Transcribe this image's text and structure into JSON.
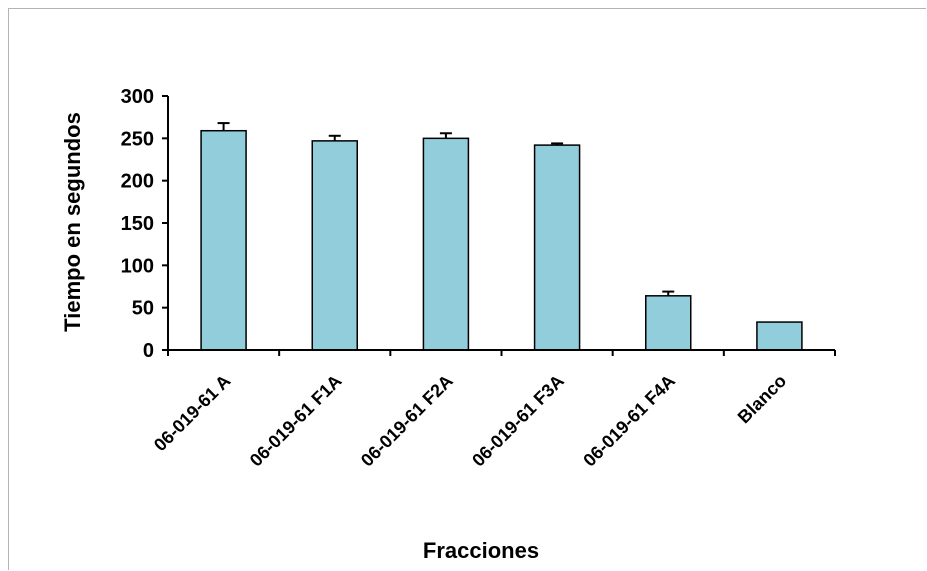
{
  "chart_data": {
    "type": "bar",
    "xlabel": "Fracciones",
    "ylabel": "Tiempo en  segundos",
    "categories": [
      "06-019-61 A",
      "06-019-61 F1A",
      "06-019-61 F2A",
      "06-019-61 F3A",
      "06-019-61 F4A",
      "Blanco"
    ],
    "values": [
      259,
      247,
      250,
      242,
      64,
      33
    ],
    "errors": [
      9,
      6,
      6,
      2,
      5,
      0
    ],
    "ylim": [
      0,
      300
    ],
    "yticks": [
      0,
      50,
      100,
      150,
      200,
      250,
      300
    ],
    "bar_color": "#92cddc",
    "bar_stroke": "#000000",
    "grid": false,
    "legend": "none"
  }
}
